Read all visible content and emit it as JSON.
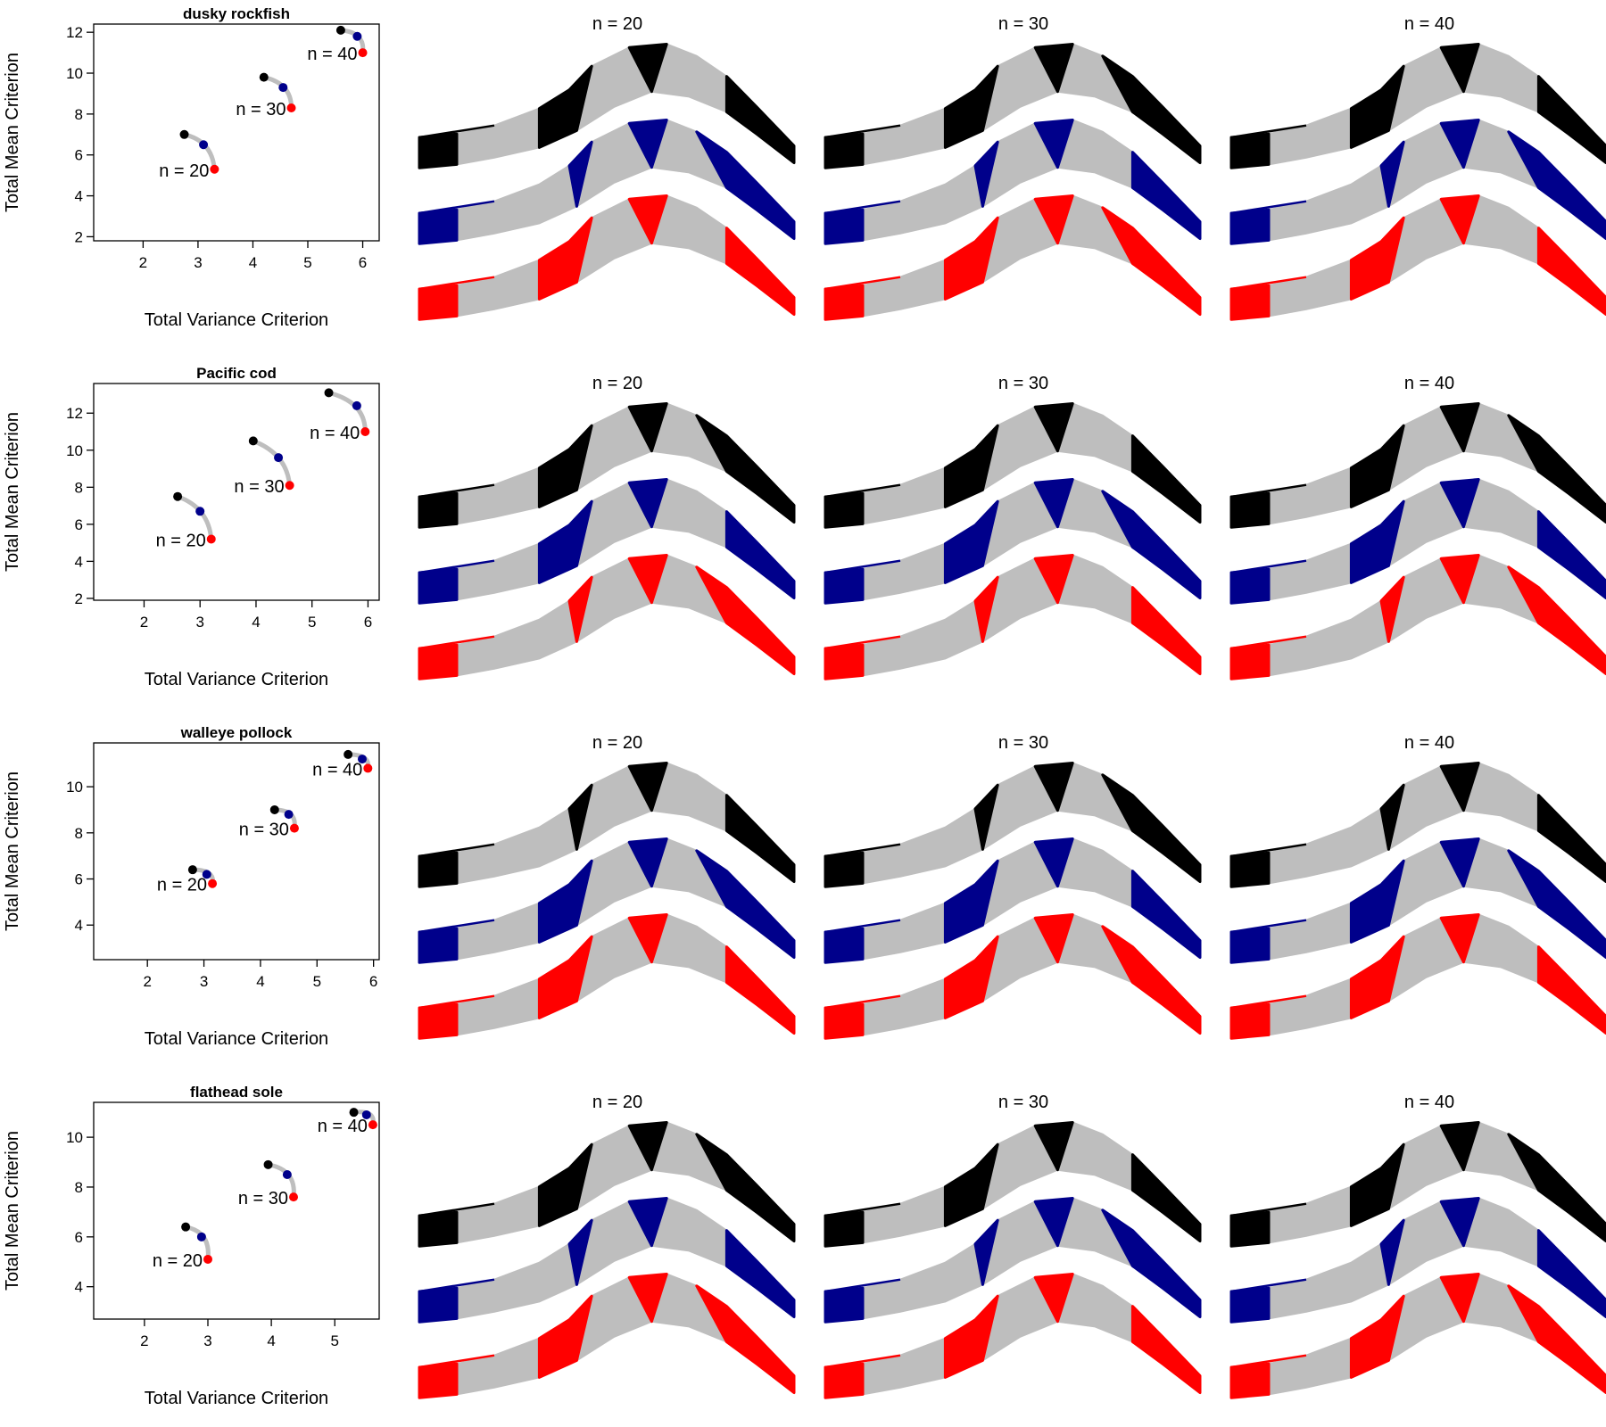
{
  "colors": {
    "black": "#000000",
    "blue": "#00008B",
    "red": "#FF0000",
    "gray": "#BEBEBE"
  },
  "chart_data": [
    {
      "type": "scatter",
      "title": "dusky rockfish",
      "xlabel": "Total Variance Criterion",
      "ylabel": "Total Mean Criterion",
      "xlim": [
        1.1,
        6.3
      ],
      "ylim": [
        1.8,
        12.4
      ],
      "xticks": [
        2,
        3,
        4,
        5,
        6
      ],
      "yticks": [
        2,
        4,
        6,
        8,
        10,
        12
      ],
      "groups": [
        {
          "label": "n = 20",
          "points": [
            [
              2.75,
              7.0
            ],
            [
              3.1,
              6.5
            ],
            [
              3.3,
              5.3
            ]
          ]
        },
        {
          "label": "n = 30",
          "points": [
            [
              4.2,
              9.8
            ],
            [
              4.55,
              9.3
            ],
            [
              4.7,
              8.3
            ]
          ]
        },
        {
          "label": "n = 40",
          "points": [
            [
              5.6,
              12.1
            ],
            [
              5.9,
              11.8
            ],
            [
              6.0,
              11.0
            ]
          ]
        }
      ],
      "maps": [
        {
          "title": "n = 20"
        },
        {
          "title": "n = 30"
        },
        {
          "title": "n = 40"
        }
      ]
    },
    {
      "type": "scatter",
      "title": "Pacific cod",
      "xlabel": "Total Variance Criterion",
      "ylabel": "Total Mean Criterion",
      "xlim": [
        1.1,
        6.2
      ],
      "ylim": [
        1.9,
        13.6
      ],
      "xticks": [
        2,
        3,
        4,
        5,
        6
      ],
      "yticks": [
        2,
        4,
        6,
        8,
        10,
        12
      ],
      "groups": [
        {
          "label": "n = 20",
          "points": [
            [
              2.6,
              7.5
            ],
            [
              3.0,
              6.7
            ],
            [
              3.2,
              5.2
            ]
          ]
        },
        {
          "label": "n = 30",
          "points": [
            [
              3.95,
              10.5
            ],
            [
              4.4,
              9.6
            ],
            [
              4.6,
              8.1
            ]
          ]
        },
        {
          "label": "n = 40",
          "points": [
            [
              5.3,
              13.1
            ],
            [
              5.8,
              12.4
            ],
            [
              5.95,
              11.0
            ]
          ]
        }
      ],
      "maps": [
        {
          "title": "n = 20"
        },
        {
          "title": "n = 30"
        },
        {
          "title": "n = 40"
        }
      ]
    },
    {
      "type": "scatter",
      "title": "walleye pollock",
      "xlabel": "Total Variance Criterion",
      "ylabel": "Total Mean Criterion",
      "xlim": [
        1.05,
        6.1
      ],
      "ylim": [
        2.5,
        11.9
      ],
      "xticks": [
        2,
        3,
        4,
        5,
        6
      ],
      "yticks": [
        4,
        6,
        8,
        10
      ],
      "groups": [
        {
          "label": "n = 20",
          "points": [
            [
              2.8,
              6.4
            ],
            [
              3.05,
              6.2
            ],
            [
              3.15,
              5.8
            ]
          ]
        },
        {
          "label": "n = 30",
          "points": [
            [
              4.25,
              9.0
            ],
            [
              4.5,
              8.8
            ],
            [
              4.6,
              8.2
            ]
          ]
        },
        {
          "label": "n = 40",
          "points": [
            [
              5.55,
              11.4
            ],
            [
              5.8,
              11.2
            ],
            [
              5.9,
              10.8
            ]
          ]
        }
      ],
      "maps": [
        {
          "title": "n = 20"
        },
        {
          "title": "n = 30"
        },
        {
          "title": "n = 40"
        }
      ]
    },
    {
      "type": "scatter",
      "title": "flathead sole",
      "xlabel": "Total Variance Criterion",
      "ylabel": "Total Mean Criterion",
      "xlim": [
        1.2,
        5.7
      ],
      "ylim": [
        2.7,
        11.4
      ],
      "xticks": [
        2,
        3,
        4,
        5
      ],
      "yticks": [
        4,
        6,
        8,
        10
      ],
      "groups": [
        {
          "label": "n = 20",
          "points": [
            [
              2.65,
              6.4
            ],
            [
              2.9,
              6.0
            ],
            [
              3.0,
              5.1
            ]
          ]
        },
        {
          "label": "n = 30",
          "points": [
            [
              3.95,
              8.9
            ],
            [
              4.25,
              8.5
            ],
            [
              4.35,
              7.6
            ]
          ]
        },
        {
          "label": "n = 40",
          "points": [
            [
              5.3,
              11.0
            ],
            [
              5.5,
              10.9
            ],
            [
              5.6,
              10.5
            ]
          ]
        }
      ],
      "maps": [
        {
          "title": "n = 20"
        },
        {
          "title": "n = 30"
        },
        {
          "title": "n = 40"
        }
      ]
    }
  ]
}
